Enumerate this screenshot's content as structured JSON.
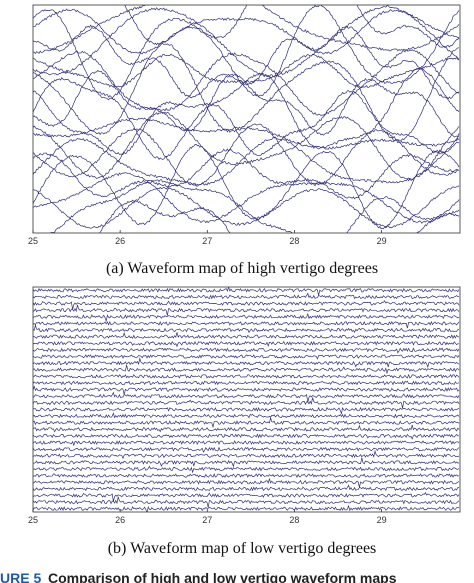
{
  "chart_data": [
    {
      "type": "line",
      "caption": "(a) Waveform map of high vertigo degrees",
      "xlim": [
        25,
        29.9
      ],
      "xticks": [
        25,
        26,
        27,
        28,
        29
      ],
      "color": "#2e2e7a"
    },
    {
      "type": "line",
      "caption": "(b) Waveform map of low vertigo degrees",
      "xlim": [
        25,
        29.9
      ],
      "xticks": [
        25,
        26,
        27,
        28,
        29
      ],
      "color": "#2e2e7a"
    }
  ],
  "figure_label": "URE 5",
  "figure_caption": "Comparison of high and low vertigo waveform maps"
}
